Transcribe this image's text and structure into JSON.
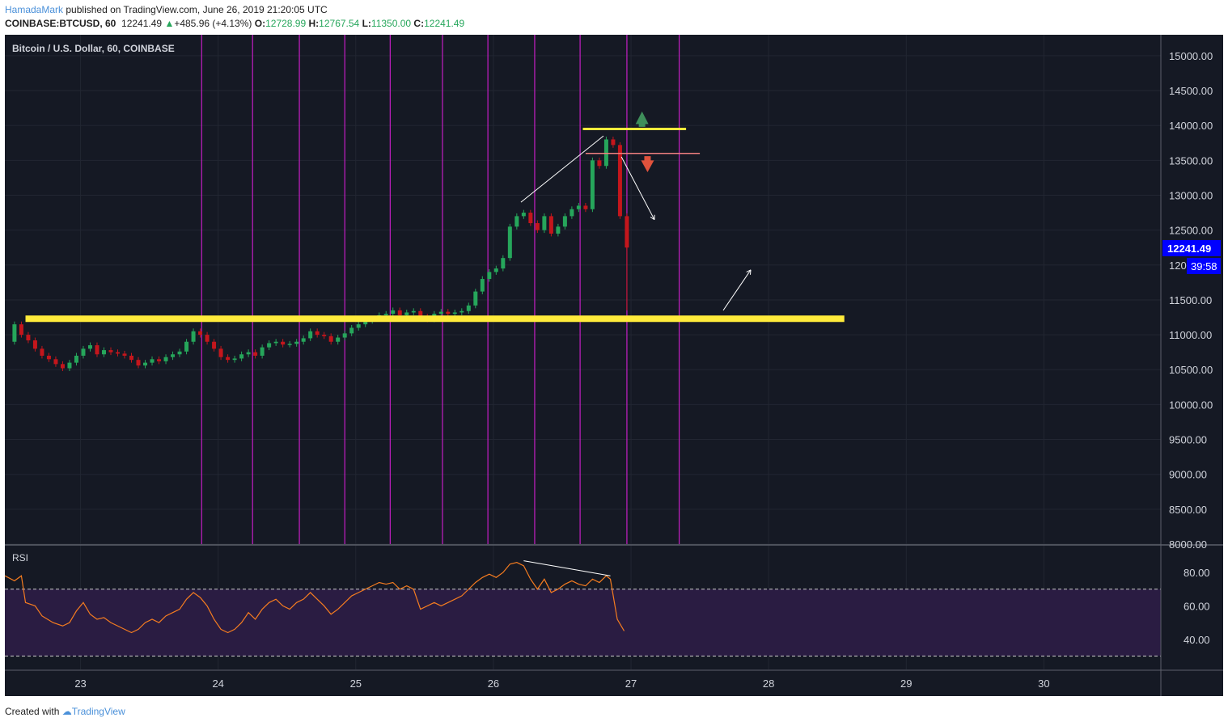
{
  "header": {
    "user": "HamadaMark",
    "published": "published on TradingView.com, June 26, 2019 21:20:05 UTC",
    "symbol": "COINBASE:BTCUSD, 60",
    "last": "12241.49",
    "change": "+485.96 (+4.13%)",
    "o_label": "O:",
    "o_value": "12728.99",
    "h_label": "H:",
    "h_value": "12767.54",
    "l_label": "L:",
    "l_value": "11350.00",
    "c_label": "C:",
    "c_value": "12241.49"
  },
  "footer": {
    "created": "Created with",
    "brand": "TradingView"
  },
  "colors": {
    "bg": "#151924",
    "up": "#26a65b",
    "down": "#c4161c",
    "yellow": "#ffeb3b",
    "magenta": "#c41ec4",
    "rsi": "#f57c20",
    "price_tag": "#0000ff"
  },
  "chart_data": {
    "type": "candlestick",
    "title": "Bitcoin / U.S. Dollar, 60, COINBASE",
    "last_price_label": "12241.49",
    "countdown_label": "39:58",
    "ylim": [
      8000,
      15300
    ],
    "y_ticks": [
      8000,
      8500,
      9000,
      9500,
      10000,
      10500,
      11000,
      11500,
      12000,
      12500,
      13000,
      13500,
      14000,
      14500,
      15000
    ],
    "y_tick_labels": [
      "8000.00",
      "8500.00",
      "9000.00",
      "9500.00",
      "10000.00",
      "10500.00",
      "11000.00",
      "11500.00",
      "12000.00",
      "12500.00",
      "13000.00",
      "13500.00",
      "14000.00",
      "14500.00",
      "15000.00"
    ],
    "xlim": [
      22.45,
      30.85
    ],
    "x_ticks": [
      23,
      24,
      25,
      26,
      27,
      28,
      29,
      30
    ],
    "x_tick_labels": [
      "23",
      "24",
      "25",
      "26",
      "27",
      "28",
      "29",
      "30"
    ],
    "close_series": [
      [
        22.45,
        10900
      ],
      [
        22.52,
        11150
      ],
      [
        22.57,
        11000
      ],
      [
        22.62,
        10920
      ],
      [
        22.67,
        10800
      ],
      [
        22.72,
        10700
      ],
      [
        22.77,
        10650
      ],
      [
        22.82,
        10580
      ],
      [
        22.87,
        10520
      ],
      [
        22.92,
        10600
      ],
      [
        22.97,
        10700
      ],
      [
        23.02,
        10800
      ],
      [
        23.07,
        10850
      ],
      [
        23.12,
        10720
      ],
      [
        23.17,
        10780
      ],
      [
        23.22,
        10750
      ],
      [
        23.27,
        10730
      ],
      [
        23.32,
        10700
      ],
      [
        23.37,
        10640
      ],
      [
        23.42,
        10560
      ],
      [
        23.47,
        10600
      ],
      [
        23.52,
        10650
      ],
      [
        23.57,
        10620
      ],
      [
        23.62,
        10680
      ],
      [
        23.67,
        10720
      ],
      [
        23.72,
        10760
      ],
      [
        23.77,
        10900
      ],
      [
        23.82,
        11050
      ],
      [
        23.87,
        11000
      ],
      [
        23.92,
        10900
      ],
      [
        23.97,
        10800
      ],
      [
        24.02,
        10680
      ],
      [
        24.07,
        10640
      ],
      [
        24.12,
        10660
      ],
      [
        24.17,
        10720
      ],
      [
        24.22,
        10750
      ],
      [
        24.27,
        10700
      ],
      [
        24.32,
        10820
      ],
      [
        24.37,
        10880
      ],
      [
        24.42,
        10900
      ],
      [
        24.47,
        10860
      ],
      [
        24.52,
        10870
      ],
      [
        24.57,
        10900
      ],
      [
        24.62,
        10950
      ],
      [
        24.67,
        11050
      ],
      [
        24.72,
        11000
      ],
      [
        24.77,
        10980
      ],
      [
        24.82,
        10900
      ],
      [
        24.87,
        10960
      ],
      [
        24.92,
        11020
      ],
      [
        24.97,
        11100
      ],
      [
        25.02,
        11150
      ],
      [
        25.07,
        11200
      ],
      [
        25.12,
        11230
      ],
      [
        25.17,
        11280
      ],
      [
        25.22,
        11300
      ],
      [
        25.27,
        11350
      ],
      [
        25.32,
        11280
      ],
      [
        25.37,
        11320
      ],
      [
        25.42,
        11340
      ],
      [
        25.47,
        11260
      ],
      [
        25.52,
        11220
      ],
      [
        25.57,
        11300
      ],
      [
        25.62,
        11330
      ],
      [
        25.67,
        11300
      ],
      [
        25.72,
        11320
      ],
      [
        25.77,
        11340
      ],
      [
        25.82,
        11420
      ],
      [
        25.87,
        11620
      ],
      [
        25.92,
        11800
      ],
      [
        25.97,
        11900
      ],
      [
        26.02,
        11950
      ],
      [
        26.07,
        12100
      ],
      [
        26.12,
        12550
      ],
      [
        26.17,
        12700
      ],
      [
        26.22,
        12750
      ],
      [
        26.27,
        12600
      ],
      [
        26.32,
        12500
      ],
      [
        26.37,
        12700
      ],
      [
        26.42,
        12450
      ],
      [
        26.47,
        12550
      ],
      [
        26.52,
        12700
      ],
      [
        26.57,
        12800
      ],
      [
        26.62,
        12850
      ],
      [
        26.67,
        12800
      ],
      [
        26.72,
        13500
      ],
      [
        26.77,
        13420
      ],
      [
        26.82,
        13800
      ],
      [
        26.87,
        13720
      ],
      [
        26.92,
        12700
      ],
      [
        26.97,
        12250
      ]
    ],
    "horizontal_levels": [
      {
        "name": "support",
        "value": 11230,
        "x_range": [
          22.6,
          28.55
        ],
        "color": "yellow"
      },
      {
        "name": "resistance",
        "value": 13950,
        "x_range": [
          26.65,
          27.4
        ],
        "color": "yellow"
      },
      {
        "name": "breakdown",
        "value": 13600,
        "x_range": [
          26.67,
          27.5
        ],
        "color": "salmon"
      }
    ],
    "vertical_line_days": [
      23.88,
      24.25,
      24.59,
      24.92,
      25.25,
      25.63,
      25.96,
      26.3,
      26.63,
      26.97,
      27.35
    ],
    "rsi": {
      "label": "RSI",
      "ylim": [
        22,
        96
      ],
      "y_ticks": [
        40,
        60,
        80
      ],
      "y_tick_labels": [
        "40.00",
        "60.00",
        "80.00"
      ],
      "bands": [
        30,
        70
      ],
      "series": [
        [
          22.45,
          78
        ],
        [
          22.52,
          75
        ],
        [
          22.57,
          78
        ],
        [
          22.6,
          62
        ],
        [
          22.67,
          60
        ],
        [
          22.72,
          54
        ],
        [
          22.8,
          50
        ],
        [
          22.87,
          48
        ],
        [
          22.92,
          50
        ],
        [
          22.97,
          57
        ],
        [
          23.02,
          62
        ],
        [
          23.07,
          55
        ],
        [
          23.12,
          52
        ],
        [
          23.17,
          53
        ],
        [
          23.22,
          50
        ],
        [
          23.27,
          48
        ],
        [
          23.32,
          46
        ],
        [
          23.37,
          44
        ],
        [
          23.42,
          46
        ],
        [
          23.47,
          50
        ],
        [
          23.52,
          52
        ],
        [
          23.57,
          50
        ],
        [
          23.62,
          54
        ],
        [
          23.67,
          56
        ],
        [
          23.72,
          58
        ],
        [
          23.77,
          64
        ],
        [
          23.82,
          68
        ],
        [
          23.87,
          65
        ],
        [
          23.92,
          60
        ],
        [
          23.97,
          52
        ],
        [
          24.02,
          46
        ],
        [
          24.07,
          44
        ],
        [
          24.12,
          46
        ],
        [
          24.17,
          50
        ],
        [
          24.22,
          56
        ],
        [
          24.27,
          52
        ],
        [
          24.32,
          58
        ],
        [
          24.37,
          62
        ],
        [
          24.42,
          64
        ],
        [
          24.47,
          60
        ],
        [
          24.52,
          58
        ],
        [
          24.57,
          62
        ],
        [
          24.62,
          64
        ],
        [
          24.67,
          68
        ],
        [
          24.72,
          64
        ],
        [
          24.77,
          60
        ],
        [
          24.82,
          55
        ],
        [
          24.87,
          58
        ],
        [
          24.92,
          62
        ],
        [
          24.97,
          66
        ],
        [
          25.02,
          68
        ],
        [
          25.07,
          70
        ],
        [
          25.12,
          72
        ],
        [
          25.17,
          74
        ],
        [
          25.22,
          73
        ],
        [
          25.27,
          74
        ],
        [
          25.32,
          70
        ],
        [
          25.37,
          72
        ],
        [
          25.42,
          70
        ],
        [
          25.47,
          58
        ],
        [
          25.52,
          60
        ],
        [
          25.57,
          62
        ],
        [
          25.62,
          60
        ],
        [
          25.67,
          62
        ],
        [
          25.72,
          64
        ],
        [
          25.77,
          66
        ],
        [
          25.82,
          70
        ],
        [
          25.87,
          74
        ],
        [
          25.92,
          77
        ],
        [
          25.97,
          79
        ],
        [
          26.02,
          77
        ],
        [
          26.07,
          80
        ],
        [
          26.12,
          85
        ],
        [
          26.17,
          86
        ],
        [
          26.22,
          84
        ],
        [
          26.27,
          76
        ],
        [
          26.32,
          70
        ],
        [
          26.37,
          76
        ],
        [
          26.42,
          68
        ],
        [
          26.47,
          70
        ],
        [
          26.52,
          73
        ],
        [
          26.57,
          75
        ],
        [
          26.62,
          73
        ],
        [
          26.67,
          72
        ],
        [
          26.72,
          76
        ],
        [
          26.77,
          74
        ],
        [
          26.82,
          78
        ],
        [
          26.85,
          76
        ],
        [
          26.9,
          52
        ],
        [
          26.95,
          45
        ]
      ]
    }
  }
}
